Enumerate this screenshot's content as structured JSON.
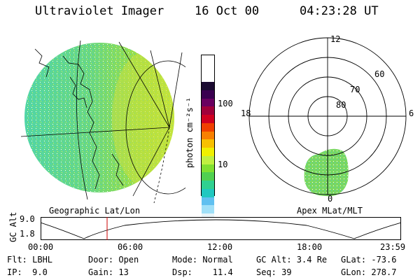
{
  "header": {
    "instrument": "Ultraviolet Imager",
    "date": "16 Oct 00",
    "time": "04:23:28 UT"
  },
  "colorbar": {
    "unit_label": "photon cm⁻²s⁻¹",
    "tick_labels": [
      "100",
      "10"
    ],
    "colors": [
      "#1a0a30",
      "#3a0050",
      "#6a0060",
      "#a0003a",
      "#d00020",
      "#f04000",
      "#f88000",
      "#f8c000",
      "#f0f000",
      "#c0f040",
      "#80e030",
      "#50d050",
      "#30d090",
      "#20c8c0",
      "#60c0f0",
      "#a0e0f8",
      "#e8f4f8"
    ]
  },
  "left_panel": {
    "label": "Geographic Lat/Lon"
  },
  "right_panel": {
    "label": "Apex MLat/MLT",
    "lat_labels": [
      "80",
      "70",
      "60"
    ],
    "mlt_labels": [
      "12",
      "18",
      "6",
      "0"
    ]
  },
  "altitude_plot": {
    "ylabel": "GC Alt",
    "y_ticks": [
      "9.0",
      "1.8"
    ],
    "x_ticks": [
      "00:00",
      "06:00",
      "12:00",
      "18:00",
      "23:59"
    ],
    "marker_color": "#cc0000"
  },
  "info": {
    "flt": "Flt: LBHL",
    "ip": "IP:  9.0",
    "door": "Door: Open",
    "gain": "Gain: 13",
    "mode": "Mode: Normal",
    "dsp": "Dsp:    11.4",
    "gcalt": "GC Alt: 3.4 Re",
    "seq": "Seq: 39",
    "glat": "GLat: -73.6",
    "glon": "GLon: 278.7"
  }
}
